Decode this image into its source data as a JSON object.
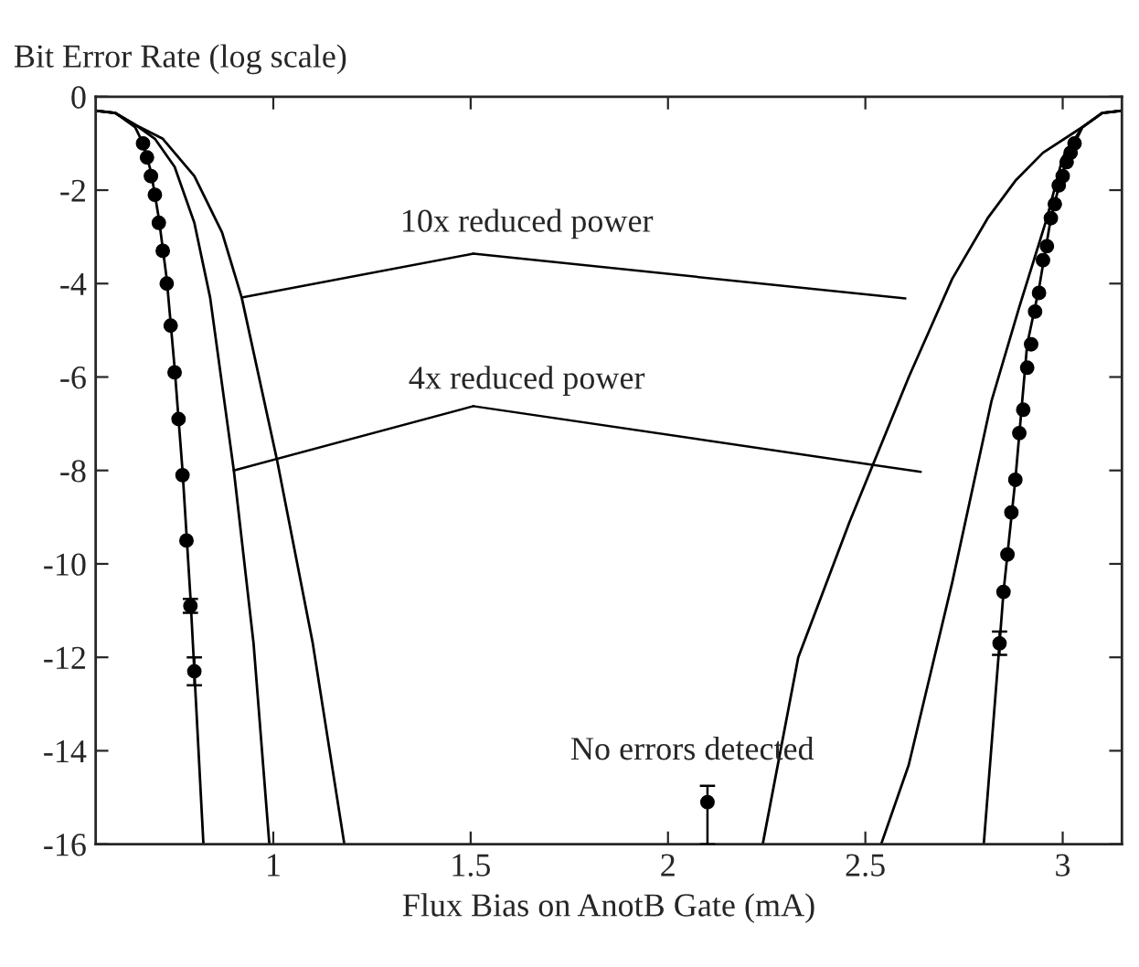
{
  "chart_data": {
    "type": "line",
    "ylabel": "Bit Error Rate (log scale)",
    "xlabel": "Flux Bias on AnotB Gate (mA)",
    "xlim": [
      0.55,
      3.15
    ],
    "xticks": [
      1,
      1.5,
      2,
      2.5,
      3
    ],
    "ylim": [
      -16,
      0
    ],
    "yticks": [
      0,
      {
        "value": -2,
        "label": "-2"
      },
      {
        "value": -4,
        "label": "-4"
      },
      {
        "value": -6,
        "label": "-6"
      },
      {
        "value": -8,
        "label": "-8"
      },
      {
        "value": -10,
        "label": "-10"
      },
      {
        "value": -12,
        "label": "-12"
      },
      {
        "value": -14,
        "label": "-14"
      },
      {
        "value": -16,
        "label": "-16"
      }
    ],
    "grid": false,
    "legend": false,
    "line_style": "solid",
    "marker": "none",
    "series": [
      {
        "color": "#000000",
        "x": [
          0.55,
          0.6,
          0.65,
          0.67,
          0.69,
          0.71,
          0.73,
          0.75,
          0.77,
          0.79,
          0.8,
          0.823
        ],
        "values": [
          -0.3,
          -0.35,
          -0.65,
          -1.0,
          -1.6,
          -2.6,
          -3.9,
          -5.8,
          -8.0,
          -10.7,
          -12.3,
          -16
        ]
      },
      {
        "color": "#000000",
        "x": [
          0.55,
          0.6,
          0.65,
          0.7,
          0.75,
          0.8,
          0.84,
          0.9,
          0.95,
          0.99
        ],
        "values": [
          -0.3,
          -0.35,
          -0.6,
          -0.9,
          -1.5,
          -2.7,
          -4.3,
          -8.0,
          -11.7,
          -16
        ]
      },
      {
        "color": "#000000",
        "x": [
          0.55,
          0.6,
          0.65,
          0.72,
          0.8,
          0.87,
          0.92,
          1.01,
          1.1,
          1.18
        ],
        "values": [
          -0.3,
          -0.35,
          -0.6,
          -0.9,
          -1.7,
          -2.9,
          -4.3,
          -7.8,
          -11.7,
          -16
        ]
      },
      {
        "color": "#000000",
        "x": [
          3.15,
          3.1,
          3.05,
          3.03,
          3.0,
          2.97,
          2.94,
          2.91,
          2.88,
          2.85,
          2.84,
          2.8
        ],
        "values": [
          -0.3,
          -0.35,
          -0.65,
          -1.0,
          -1.6,
          -2.6,
          -4.1,
          -5.3,
          -8.2,
          -10.6,
          -11.7,
          -16
        ]
      },
      {
        "color": "#000000",
        "x": [
          3.15,
          3.1,
          3.05,
          3.0,
          2.96,
          2.89,
          2.82,
          2.72,
          2.61,
          2.54
        ],
        "values": [
          -0.3,
          -0.35,
          -0.65,
          -1.3,
          -2.6,
          -4.5,
          -6.5,
          -10.4,
          -14.3,
          -16
        ]
      },
      {
        "color": "#000000",
        "x": [
          3.15,
          3.1,
          3.05,
          2.95,
          2.88,
          2.81,
          2.72,
          2.61,
          2.46,
          2.33,
          2.24
        ],
        "values": [
          -0.3,
          -0.35,
          -0.65,
          -1.2,
          -1.8,
          -2.6,
          -3.9,
          -6.0,
          -9.1,
          -12.0,
          -16
        ]
      },
      {
        "type": "scatter",
        "color": "#000000",
        "marker": "circle",
        "x": [
          0.67,
          0.68,
          0.69,
          0.7,
          0.71,
          0.72,
          0.73,
          0.74,
          0.75,
          0.76,
          0.77,
          0.78,
          0.79,
          0.8
        ],
        "values": [
          -1.0,
          -1.3,
          -1.7,
          -2.1,
          -2.7,
          -3.3,
          -4.0,
          -4.9,
          -5.9,
          -6.9,
          -8.1,
          -9.5,
          -10.9,
          -12.3
        ],
        "errors": [
          null,
          null,
          null,
          null,
          null,
          null,
          null,
          null,
          null,
          null,
          null,
          null,
          0.15,
          0.3
        ]
      },
      {
        "type": "scatter",
        "color": "#000000",
        "marker": "circle",
        "x": [
          3.03,
          3.02,
          3.01,
          3.0,
          2.99,
          2.98,
          2.97,
          2.96,
          2.95,
          2.94,
          2.93,
          2.92,
          2.91,
          2.9,
          2.89,
          2.88,
          2.87,
          2.86,
          2.85,
          2.84
        ],
        "values": [
          -1.0,
          -1.2,
          -1.4,
          -1.7,
          -1.9,
          -2.3,
          -2.6,
          -3.2,
          -3.5,
          -4.2,
          -4.6,
          -5.3,
          -5.8,
          -6.7,
          -7.2,
          -8.2,
          -8.9,
          -9.8,
          -10.6,
          -11.7
        ],
        "errors": [
          null,
          null,
          null,
          null,
          null,
          null,
          null,
          null,
          null,
          null,
          null,
          null,
          null,
          null,
          null,
          null,
          null,
          null,
          null,
          0.25
        ]
      },
      {
        "type": "scatter",
        "color": "#000000",
        "marker": "circle",
        "x": [
          2.1
        ],
        "values": [
          -15.1
        ],
        "errors": [
          [
            -16,
            -14.75
          ]
        ]
      }
    ],
    "annotations": [
      {
        "text": "10x reduced power",
        "x": 0.92,
        "y": -4.3
      },
      {
        "text": "4x reduced power",
        "x": 0.9,
        "y": -8.0
      },
      {
        "text": "No errors detected",
        "x": 2.1,
        "y": -15.1
      }
    ]
  }
}
